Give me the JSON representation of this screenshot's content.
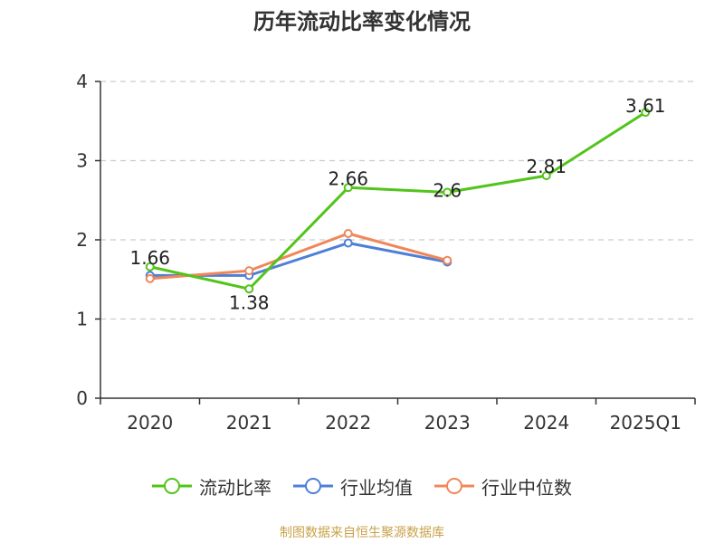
{
  "chart_data": {
    "type": "line",
    "title": "历年流动比率变化情况",
    "categories": [
      "2020",
      "2021",
      "2022",
      "2023",
      "2024",
      "2025Q1"
    ],
    "y_ticks": [
      0,
      1,
      2,
      3,
      4
    ],
    "ylim": [
      0,
      4
    ],
    "xlabel": "",
    "ylabel": "",
    "grid": true,
    "legend_position": "bottom",
    "series": [
      {
        "name": "流动比率",
        "color": "#52c41a",
        "values": [
          1.66,
          1.38,
          2.66,
          2.6,
          2.81,
          3.61
        ],
        "labels": [
          "1.66",
          "1.38",
          "2.66",
          "2.6",
          "2.81",
          "3.61"
        ]
      },
      {
        "name": "行业均值",
        "color": "#4e7fd6",
        "values": [
          1.55,
          1.55,
          1.96,
          1.72,
          null,
          null
        ]
      },
      {
        "name": "行业中位数",
        "color": "#f0875a",
        "values": [
          1.51,
          1.61,
          2.08,
          1.74,
          null,
          null
        ]
      }
    ]
  },
  "footer": {
    "source": "制图数据来自恒生聚源数据库"
  }
}
